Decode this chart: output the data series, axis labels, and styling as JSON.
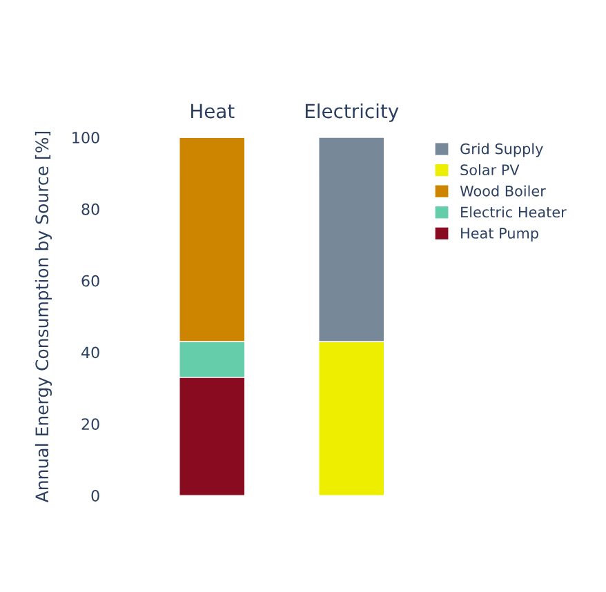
{
  "chart_data": {
    "type": "bar",
    "stacked": true,
    "ylabel": "Annual Energy Consumption by Source [%]",
    "categories": [
      "Heat",
      "Electricity"
    ],
    "series": [
      {
        "name": "Heat Pump",
        "color": "#880b20",
        "values": [
          33,
          null
        ]
      },
      {
        "name": "Electric Heater",
        "color": "#66cdaa",
        "values": [
          10,
          null
        ]
      },
      {
        "name": "Wood Boiler",
        "color": "#cd8500",
        "values": [
          57,
          null
        ]
      },
      {
        "name": "Solar PV",
        "color": "#eeee00",
        "values": [
          null,
          43
        ]
      },
      {
        "name": "Grid Supply",
        "color": "#778899",
        "values": [
          null,
          57
        ]
      }
    ],
    "ylim": [
      0,
      100
    ],
    "yticks": [
      0,
      20,
      40,
      60,
      80,
      100
    ],
    "grid": false,
    "legend": "top right"
  }
}
